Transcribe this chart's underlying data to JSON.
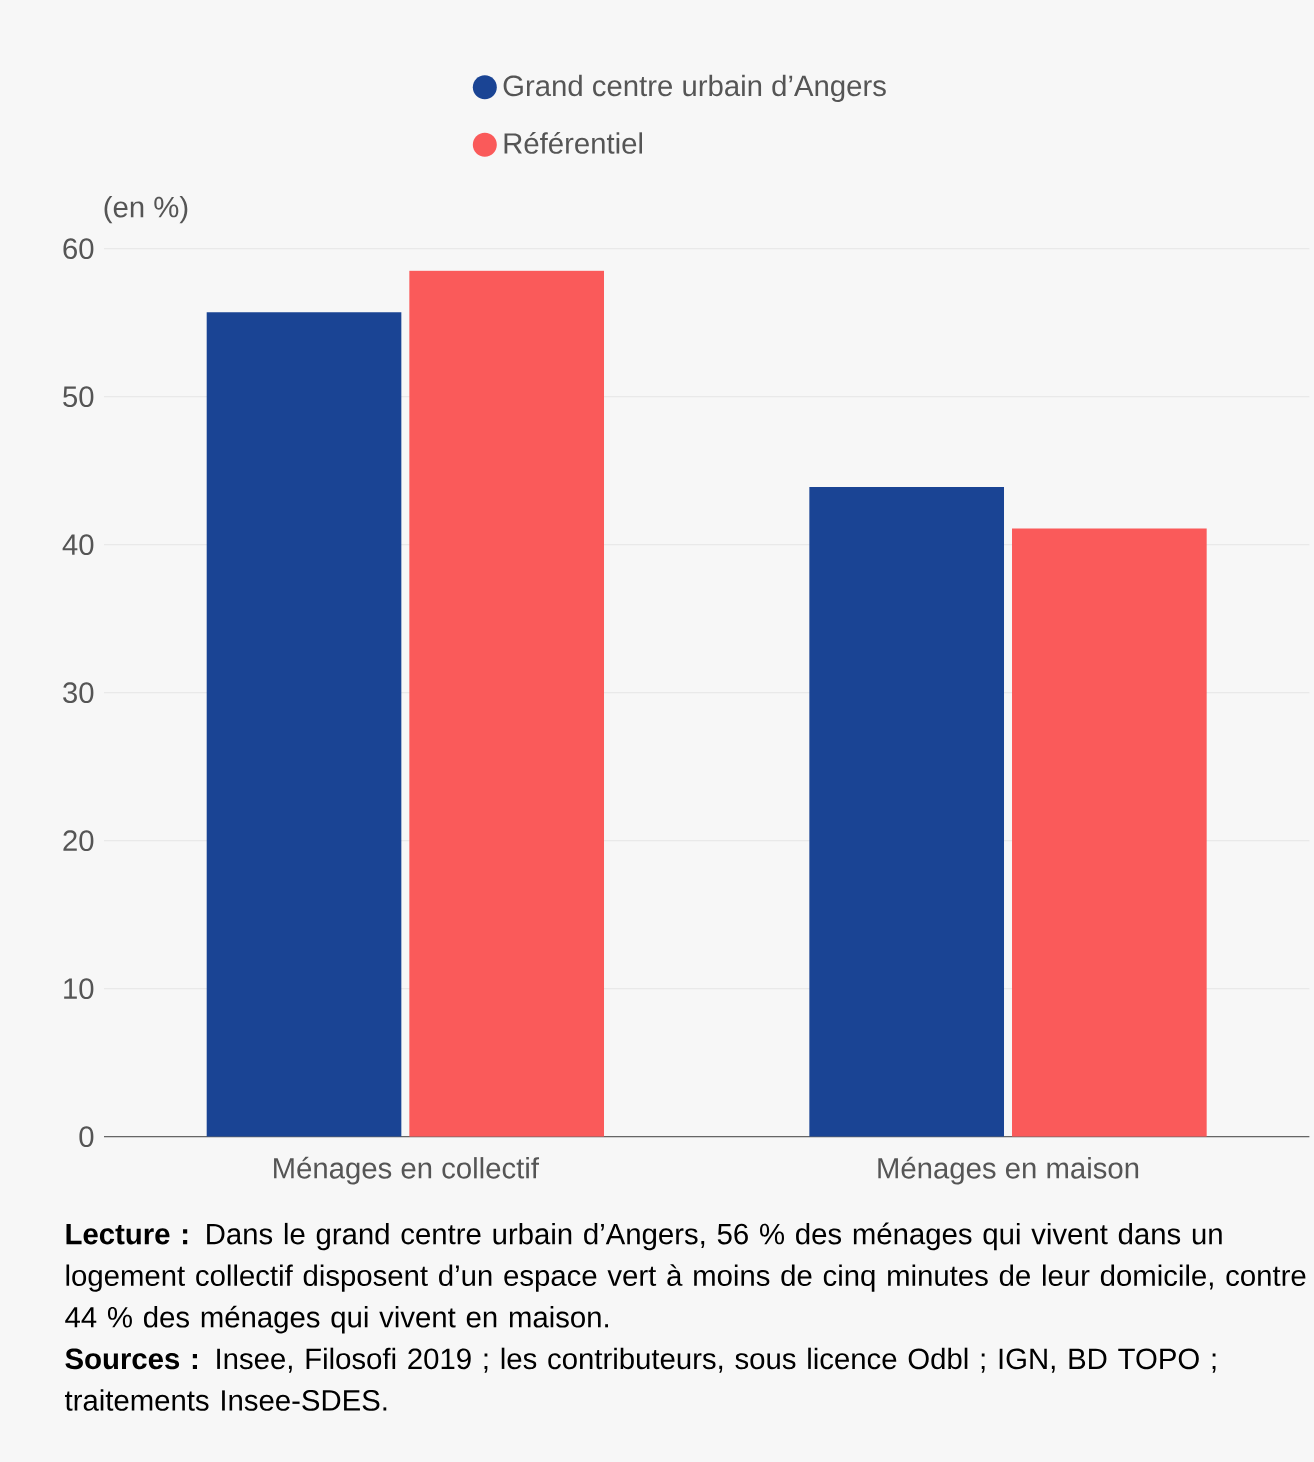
{
  "chart_data": {
    "type": "bar",
    "ylabel": "(en %)",
    "categories": [
      "Ménages en collectif",
      "Ménages en maison"
    ],
    "series": [
      {
        "name": "Grand centre urbain d’Angers",
        "color": "#1a4494",
        "values": [
          55.7,
          43.9
        ]
      },
      {
        "name": "Référentiel",
        "color": "#fa5a5a",
        "values": [
          58.5,
          41.1
        ]
      }
    ],
    "ylim": [
      0,
      60
    ],
    "yticks": [
      0,
      10,
      20,
      30,
      40,
      50,
      60
    ],
    "grid": "y",
    "legend": "top",
    "annotations": [
      "**Lecture :** Dans le grand centre urbain d’Angers, 56 % des ménages qui vivent dans un logement collectif disposent d’un espace vert à moins de cinq minutes de leur domicile, contre 44 % des ménages qui vivent en maison.",
      "**Sources :** Insee, Filosofi 2019 ; les contributeurs, sous licence Odbl ; IGN, BD TOPO ; traitements Insee-SDES."
    ]
  }
}
